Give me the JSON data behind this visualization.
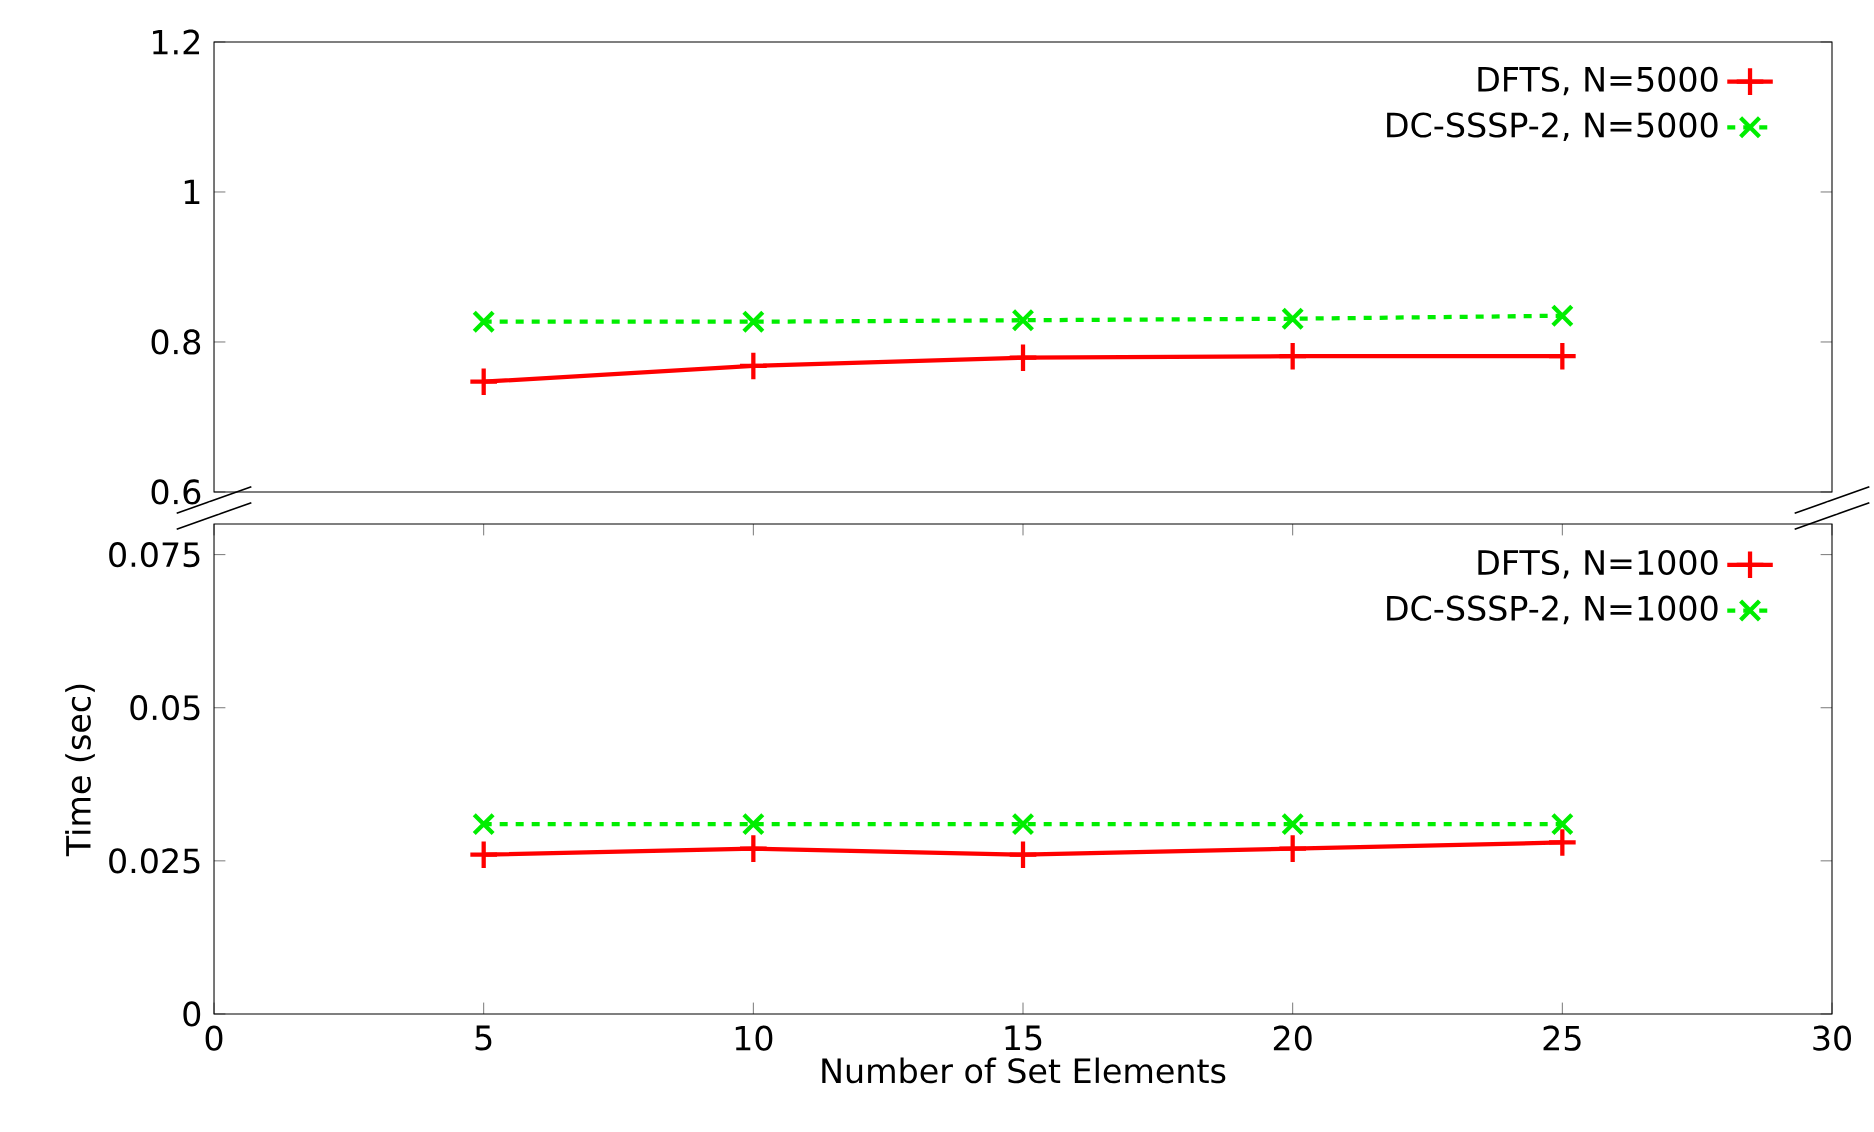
{
  "chart_data": [
    {
      "type": "line",
      "x": [
        5,
        10,
        15,
        20,
        25
      ],
      "xlim": [
        0,
        30
      ],
      "ylim": [
        0.6,
        1.2
      ],
      "yticks": [
        0.6,
        0.8,
        1,
        1.2
      ],
      "tick_labels": "y",
      "legend": "top right",
      "series": [
        {
          "name": "DFTS, N=5000",
          "color": "#ff0000",
          "marker": "plus",
          "line_style": "solid",
          "values": [
            0.747,
            0.768,
            0.779,
            0.781,
            0.781
          ]
        },
        {
          "name": "DC-SSSP-2, N=5000",
          "color": "#00ee00",
          "marker": "cross",
          "line_style": "dashed",
          "values": [
            0.827,
            0.827,
            0.829,
            0.831,
            0.835
          ]
        }
      ]
    },
    {
      "type": "line",
      "x": [
        5,
        10,
        15,
        20,
        25
      ],
      "xlim": [
        0,
        30
      ],
      "xticks": [
        0,
        5,
        10,
        15,
        20,
        25,
        30
      ],
      "ylim": [
        0,
        0.08
      ],
      "yticks": [
        0,
        0.025,
        0.05,
        0.075
      ],
      "xlabel": "Number of Set Elements",
      "ylabel": "Time (sec)",
      "legend": "top right",
      "series": [
        {
          "name": "DFTS, N=1000",
          "color": "#ff0000",
          "marker": "plus",
          "line_style": "solid",
          "values": [
            0.026,
            0.027,
            0.026,
            0.027,
            0.028
          ]
        },
        {
          "name": "DC-SSSP-2, N=1000",
          "color": "#00ee00",
          "marker": "cross",
          "line_style": "dashed",
          "values": [
            0.031,
            0.031,
            0.031,
            0.031,
            0.031
          ]
        }
      ]
    }
  ]
}
